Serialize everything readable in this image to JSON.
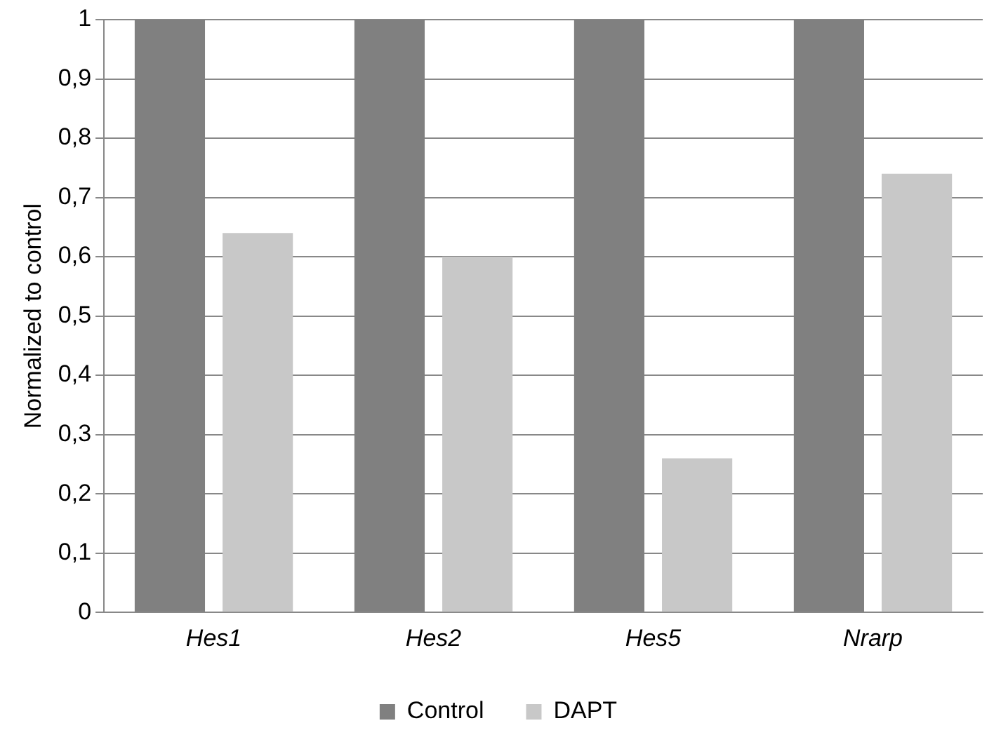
{
  "chart_data": {
    "type": "bar",
    "ylabel": "Normalized to control",
    "categories": [
      "Hes1",
      "Hes2",
      "Hes5",
      "Nrarp"
    ],
    "series": [
      {
        "name": "Control",
        "color": "#808080",
        "values": [
          1,
          1,
          1,
          1
        ]
      },
      {
        "name": "DAPT",
        "color": "#c8c8c8",
        "values": [
          0.64,
          0.6,
          0.26,
          0.74
        ]
      }
    ],
    "ylim": [
      0,
      1
    ],
    "yticks": [
      0,
      {
        "value": 0.1,
        "label": "0,1"
      },
      {
        "value": 0.2,
        "label": "0,2"
      },
      {
        "value": 0.3,
        "label": "0,3"
      },
      {
        "value": 0.4,
        "label": "0,4"
      },
      {
        "value": 0.5,
        "label": "0,5"
      },
      {
        "value": 0.6,
        "label": "0,6"
      },
      {
        "value": 0.7,
        "label": "0,7"
      },
      {
        "value": 0.8,
        "label": "0,8"
      },
      {
        "value": 0.9,
        "label": "0,9"
      },
      1
    ],
    "grid": "y",
    "legend": "bottom"
  }
}
